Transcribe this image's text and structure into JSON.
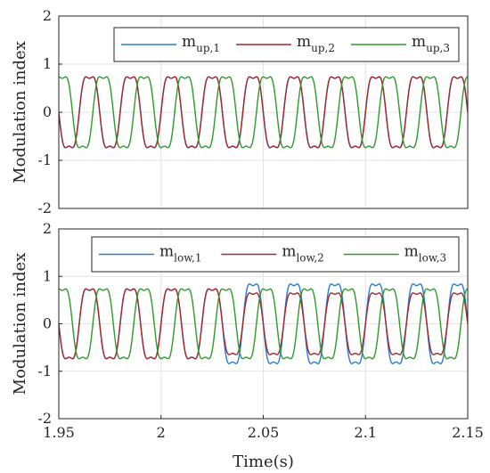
{
  "chart_data": [
    {
      "type": "line",
      "title": "",
      "xlabel": "",
      "ylabel": "Modulation index",
      "xlim": [
        1.95,
        2.15
      ],
      "ylim": [
        -2,
        2
      ],
      "yticks": [
        "-2",
        "-1",
        "0",
        "1",
        "2"
      ],
      "grid": true,
      "legend_placement": "top-right",
      "series": [
        {
          "name": "m",
          "sub": "up,1",
          "color": "#2a7bd6",
          "amplitude": 0.85,
          "amp_after_2_03": 0.85,
          "frequency_hz": 50,
          "phase_deg": 0
        },
        {
          "name": "m",
          "sub": "up,2",
          "color": "#a3272c",
          "amplitude": 0.85,
          "amp_after_2_03": 0.85,
          "frequency_hz": 50,
          "phase_deg": 0
        },
        {
          "name": "m",
          "sub": "up,3",
          "color": "#2f9a2b",
          "amplitude": 0.85,
          "amp_after_2_03": 0.85,
          "frequency_hz": 50,
          "phase_deg": -120
        }
      ]
    },
    {
      "type": "line",
      "title": "",
      "xlabel": "Time(s)",
      "ylabel": "Modulation index",
      "xlim": [
        1.95,
        2.15
      ],
      "ylim": [
        -2,
        2
      ],
      "xticks": [
        "1.95",
        "2",
        "2.05",
        "2.1",
        "2.15"
      ],
      "yticks": [
        "-2",
        "-1",
        "0",
        "1",
        "2"
      ],
      "grid": true,
      "legend_placement": "top-right",
      "series": [
        {
          "name": "m",
          "sub": "low,1",
          "color": "#2a7bd6",
          "amplitude": 0.85,
          "amp_after_2_03": 0.97,
          "frequency_hz": 50,
          "phase_deg": 0
        },
        {
          "name": "m",
          "sub": "low,2",
          "color": "#a3272c",
          "amplitude": 0.85,
          "amp_after_2_03": 0.75,
          "frequency_hz": 50,
          "phase_deg": 0
        },
        {
          "name": "m",
          "sub": "low,3",
          "color": "#2f9a2b",
          "amplitude": 0.85,
          "amp_after_2_03": 0.85,
          "frequency_hz": 50,
          "phase_deg": -120
        }
      ]
    }
  ]
}
